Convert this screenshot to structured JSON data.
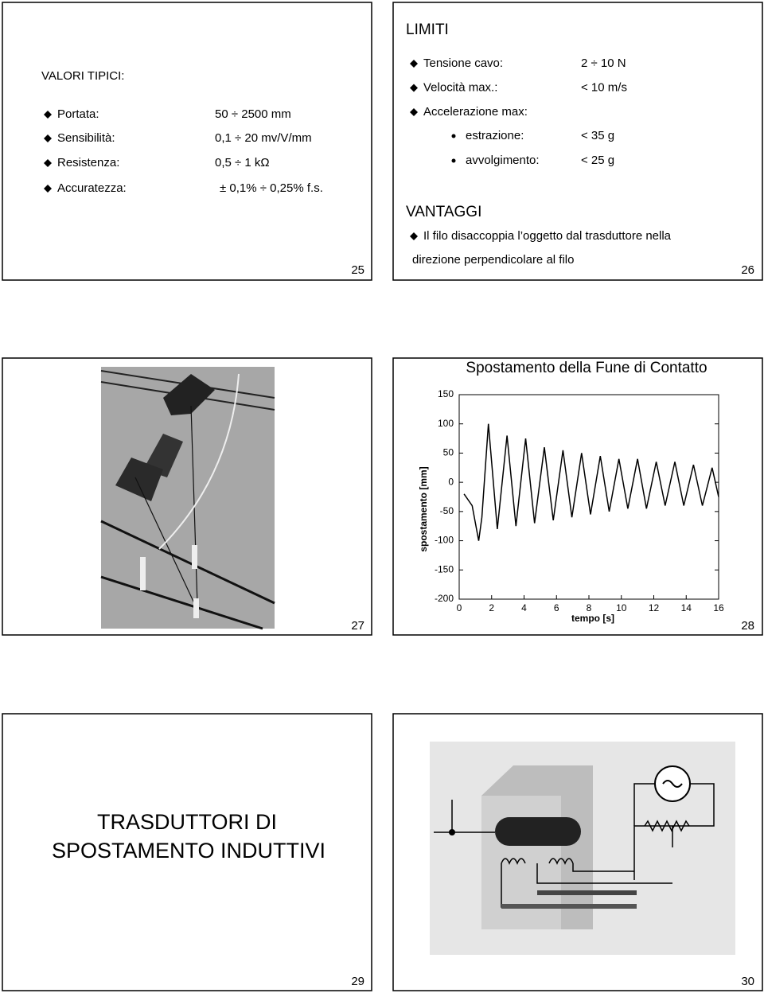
{
  "slides": [
    {
      "title": "VALORI TIPICI:",
      "items": [
        [
          "Portata:",
          "50 ÷ 2500 mm"
        ],
        [
          "Sensibilità:",
          "0,1 ÷ 20 mv/V/mm"
        ],
        [
          "Resistenza:",
          "0,5 ÷ 1 kΩ"
        ],
        [
          "Accuratezza:",
          "± 0,1% ÷ 0,25% f.s."
        ]
      ],
      "number": "25"
    },
    {
      "title": "LIMITI",
      "items": [
        [
          "Tensione cavo:",
          "2  ÷  10 N"
        ],
        [
          "Velocità max.:",
          "< 10 m/s"
        ],
        [
          "Accelerazione max:",
          ""
        ]
      ],
      "subitems": [
        [
          "estrazione:",
          "< 35 g"
        ],
        [
          "avvolgimento:",
          "< 25 g"
        ]
      ],
      "section": "VANTAGGI",
      "paragraph": [
        "Il filo disaccoppia l’oggetto dal trasduttore nella",
        "direzione perpendicolare al filo"
      ],
      "number": "26"
    },
    {
      "number": "27"
    },
    {
      "chart": {
        "type": "line",
        "title": "Spostamento della Fune di Contatto",
        "x_label": "tempo [s]",
        "y_label": "spostamento [mm]",
        "xlim": [
          0,
          16
        ],
        "ylim": [
          -200,
          150
        ],
        "xticks": [
          0,
          2,
          4,
          6,
          8,
          10,
          12,
          14,
          16
        ],
        "yticks": [
          150,
          100,
          50,
          0,
          -50,
          -100,
          -150,
          -200
        ],
        "series": [
          {
            "color": "#000000",
            "x": [
              0.3,
              0.8,
              1.2,
              1.4,
              1.8,
              2.35,
              2.95,
              3.5,
              4.1,
              4.65,
              5.25,
              5.8,
              6.4,
              6.95,
              7.55,
              8.1,
              8.7,
              9.25,
              9.85,
              10.4,
              11.0,
              11.55,
              12.15,
              12.7,
              13.3,
              13.85,
              14.45,
              15.0,
              15.6,
              16.0
            ],
            "values": [
              -20,
              -40,
              -100,
              -60,
              100,
              -80,
              80,
              -75,
              75,
              -70,
              60,
              -65,
              55,
              -60,
              50,
              -55,
              45,
              -50,
              40,
              -45,
              40,
              -45,
              35,
              -40,
              35,
              -40,
              30,
              -40,
              25,
              -25
            ]
          }
        ]
      },
      "number": "28"
    },
    {
      "title": [
        "TRASDUTTORI DI",
        "SPOSTAMENTO INDUTTIVI"
      ],
      "number": "29"
    },
    {
      "number": "30"
    }
  ]
}
